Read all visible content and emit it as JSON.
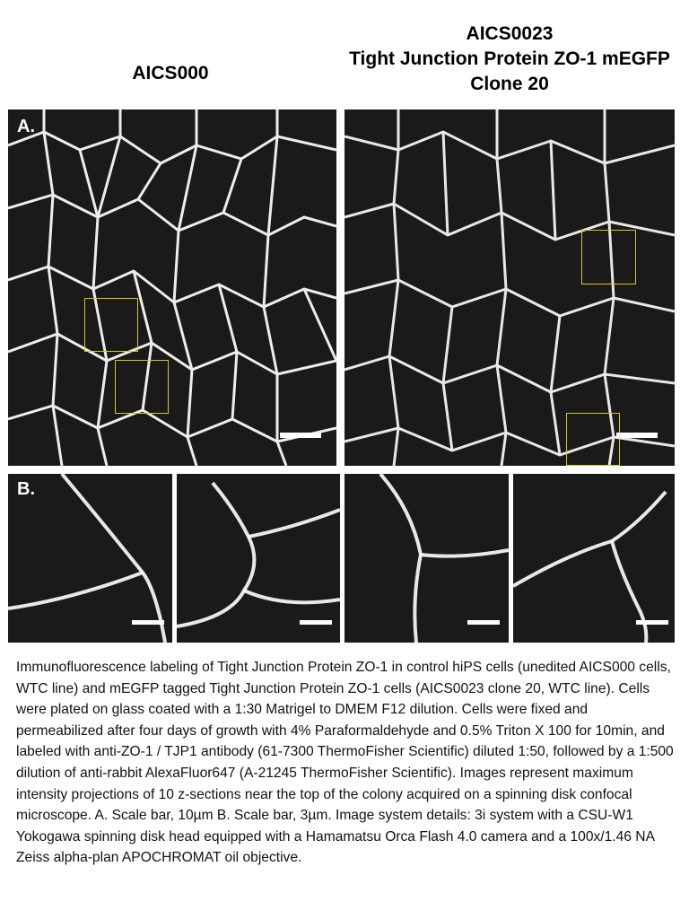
{
  "headers": {
    "left": "AICS000",
    "right_line1": "AICS0023",
    "right_line2": "Tight Junction Protein ZO-1 mEGFP",
    "right_line3": "Clone 20"
  },
  "panels": {
    "a_label": "A.",
    "b_label": "B."
  },
  "colors": {
    "background": "#1a1a1a",
    "membrane": "#ffffff",
    "roi_box": "#d6c72a"
  },
  "caption": "Immunofluorescence labeling of Tight Junction Protein ZO-1 in control hiPS cells (unedited AICS000 cells, WTC line) and mEGFP tagged Tight Junction Protein ZO-1 cells (AICS0023 clone 20, WTC line).  Cells were plated on glass coated with a 1:30 Matrigel to DMEM F12 dilution. Cells were fixed and permeabilized after four days of growth with 4% Paraformaldehyde and 0.5% Triton X 100 for 10min, and labeled with anti-ZO-1 / TJP1 antibody (61-7300 ThermoFisher Scientific) diluted 1:50, followed by a 1:500 dilution of anti-rabbit AlexaFluor647 (A-21245 ThermoFisher Scientific).  Images represent maximum intensity projections of 10 z-sections near the top of the colony acquired on a spinning disk confocal microscope. A. Scale bar, 10µm B. Scale bar, 3µm.  Image system details: 3i system with a CSU-W1 Yokogawa spinning disk head equipped with a Hamamatsu Orca Flash 4.0 camera and a 100x/1.46 NA Zeiss alpha-plan APOCHROMAT oil objective."
}
